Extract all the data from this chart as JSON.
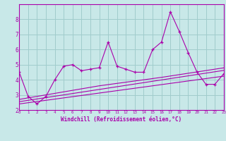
{
  "xlabel": "Windchill (Refroidissement éolien,°C)",
  "ylabel": "",
  "bg_color": "#c8e8e8",
  "grid_color": "#a0cccc",
  "line_color": "#aa00aa",
  "x_data": [
    0,
    1,
    2,
    3,
    4,
    5,
    6,
    7,
    8,
    9,
    10,
    11,
    12,
    13,
    14,
    15,
    16,
    17,
    18,
    19,
    20,
    21,
    22,
    23
  ],
  "y_scatter": [
    4.5,
    2.9,
    2.4,
    2.9,
    4.0,
    4.9,
    5.0,
    4.6,
    4.7,
    4.8,
    6.5,
    4.9,
    4.7,
    4.5,
    4.5,
    6.0,
    6.5,
    8.5,
    7.2,
    5.8,
    4.5,
    3.7,
    3.7,
    4.4
  ],
  "y_line1": [
    2.4,
    2.48,
    2.56,
    2.64,
    2.72,
    2.8,
    2.88,
    2.96,
    3.04,
    3.12,
    3.2,
    3.28,
    3.36,
    3.44,
    3.52,
    3.6,
    3.68,
    3.76,
    3.84,
    3.92,
    4.0,
    4.08,
    4.16,
    4.24
  ],
  "y_line2": [
    2.55,
    2.64,
    2.73,
    2.82,
    2.91,
    3.0,
    3.09,
    3.18,
    3.27,
    3.36,
    3.45,
    3.54,
    3.63,
    3.72,
    3.81,
    3.9,
    3.99,
    4.08,
    4.17,
    4.26,
    4.35,
    4.44,
    4.53,
    4.62
  ],
  "y_line3": [
    2.7,
    2.8,
    2.9,
    3.0,
    3.1,
    3.2,
    3.3,
    3.4,
    3.5,
    3.6,
    3.68,
    3.76,
    3.84,
    3.92,
    4.0,
    4.08,
    4.16,
    4.25,
    4.34,
    4.43,
    4.52,
    4.61,
    4.7,
    4.79
  ],
  "ylim": [
    2.0,
    9.0
  ],
  "xlim": [
    0,
    23
  ],
  "yticks": [
    2,
    3,
    4,
    5,
    6,
    7,
    8
  ],
  "xticks": [
    0,
    1,
    2,
    3,
    4,
    5,
    6,
    7,
    8,
    9,
    10,
    11,
    12,
    13,
    14,
    15,
    16,
    17,
    18,
    19,
    20,
    21,
    22,
    23
  ]
}
